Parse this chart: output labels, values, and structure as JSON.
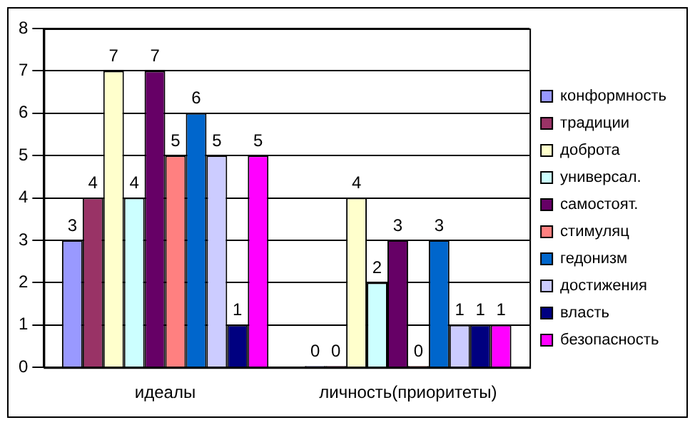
{
  "chart_data": {
    "type": "bar",
    "categories": [
      "идеалы",
      "личность(приоритеты)"
    ],
    "series": [
      {
        "name": "конформность",
        "color": "#9999ff",
        "values": [
          3,
          0
        ]
      },
      {
        "name": "традиции",
        "color": "#993366",
        "values": [
          4,
          0
        ]
      },
      {
        "name": "доброта",
        "color": "#ffffcc",
        "values": [
          7,
          4
        ]
      },
      {
        "name": "универсал.",
        "color": "#ccffff",
        "values": [
          4,
          2
        ]
      },
      {
        "name": "самостоят.",
        "color": "#660066",
        "values": [
          7,
          3
        ]
      },
      {
        "name": "стимуляц",
        "color": "#ff8080",
        "values": [
          5,
          0
        ]
      },
      {
        "name": "гедонизм",
        "color": "#0066cc",
        "values": [
          6,
          3
        ]
      },
      {
        "name": "достижения",
        "color": "#ccccff",
        "values": [
          5,
          1
        ]
      },
      {
        "name": "власть",
        "color": "#000080",
        "values": [
          1,
          1
        ]
      },
      {
        "name": "безопасность",
        "color": "#ff00ff",
        "values": [
          5,
          1
        ]
      }
    ],
    "ylim": [
      0,
      8
    ],
    "yticks": [
      0,
      1,
      2,
      3,
      4,
      5,
      6,
      7,
      8
    ],
    "grid": "y",
    "legend": "right",
    "data_labels": true
  }
}
